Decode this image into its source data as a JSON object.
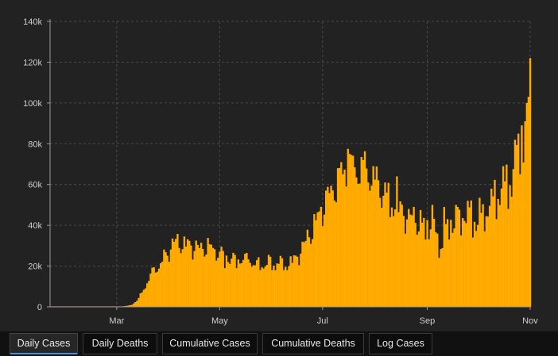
{
  "tabs": [
    {
      "label": "Daily Cases",
      "active": true
    },
    {
      "label": "Daily Deaths",
      "active": false
    },
    {
      "label": "Cumulative Cases",
      "active": false
    },
    {
      "label": "Cumulative Deaths",
      "active": false
    },
    {
      "label": "Log Cases",
      "active": false
    }
  ],
  "chart_data": {
    "type": "bar",
    "title": "",
    "xlabel": "",
    "ylabel": "",
    "bar_color": "#ffab00",
    "grid_color": "#4a4a4a",
    "grid": true,
    "ylim": [
      0,
      140000
    ],
    "y_ticks": [
      {
        "value": 0,
        "label": "0"
      },
      {
        "value": 20000,
        "label": "20k"
      },
      {
        "value": 40000,
        "label": "40k"
      },
      {
        "value": 60000,
        "label": "60k"
      },
      {
        "value": 80000,
        "label": "80k"
      },
      {
        "value": 100000,
        "label": "100k"
      },
      {
        "value": 120000,
        "label": "120k"
      },
      {
        "value": 140000,
        "label": "140k"
      }
    ],
    "x_ticks": [
      {
        "date": "2020-03-01",
        "label": "Mar"
      },
      {
        "date": "2020-05-01",
        "label": "May"
      },
      {
        "date": "2020-07-01",
        "label": "Jul"
      },
      {
        "date": "2020-09-01",
        "label": "Sep"
      },
      {
        "date": "2020-11-01",
        "label": "Nov"
      }
    ],
    "x_start": "2020-01-22",
    "x_end": "2020-11-01",
    "keypoints": [
      [
        "2020-01-22",
        0
      ],
      [
        "2020-02-28",
        10
      ],
      [
        "2020-03-03",
        100
      ],
      [
        "2020-03-07",
        500
      ],
      [
        "2020-03-10",
        1000
      ],
      [
        "2020-03-13",
        3000
      ],
      [
        "2020-03-16",
        7000
      ],
      [
        "2020-03-19",
        12000
      ],
      [
        "2020-03-22",
        17000
      ],
      [
        "2020-03-26",
        20000
      ],
      [
        "2020-03-29",
        24000
      ],
      [
        "2020-04-01",
        27000
      ],
      [
        "2020-04-04",
        31000
      ],
      [
        "2020-04-08",
        31000
      ],
      [
        "2020-04-12",
        30000
      ],
      [
        "2020-04-16",
        29000
      ],
      [
        "2020-04-20",
        28000
      ],
      [
        "2020-04-24",
        30000
      ],
      [
        "2020-04-28",
        27000
      ],
      [
        "2020-05-01",
        27000
      ],
      [
        "2020-05-05",
        25000
      ],
      [
        "2020-05-10",
        23000
      ],
      [
        "2020-05-15",
        24000
      ],
      [
        "2020-05-20",
        22000
      ],
      [
        "2020-05-26",
        21000
      ],
      [
        "2020-06-01",
        21000
      ],
      [
        "2020-06-06",
        22000
      ],
      [
        "2020-06-10",
        21000
      ],
      [
        "2020-06-15",
        23000
      ],
      [
        "2020-06-20",
        30000
      ],
      [
        "2020-06-25",
        38000
      ],
      [
        "2020-06-28",
        43000
      ],
      [
        "2020-07-02",
        50000
      ],
      [
        "2020-07-07",
        57000
      ],
      [
        "2020-07-11",
        63000
      ],
      [
        "2020-07-16",
        68000
      ],
      [
        "2020-07-21",
        66000
      ],
      [
        "2020-07-25",
        67000
      ],
      [
        "2020-07-30",
        63000
      ],
      [
        "2020-08-04",
        57000
      ],
      [
        "2020-08-08",
        55000
      ],
      [
        "2020-08-12",
        52000
      ],
      [
        "2020-08-16",
        46000
      ],
      [
        "2020-08-21",
        44000
      ],
      [
        "2020-08-26",
        42000
      ],
      [
        "2020-08-31",
        40000
      ],
      [
        "2020-09-04",
        42000
      ],
      [
        "2020-09-08",
        30000
      ],
      [
        "2020-09-12",
        38000
      ],
      [
        "2020-09-16",
        42000
      ],
      [
        "2020-09-20",
        44000
      ],
      [
        "2020-09-25",
        47000
      ],
      [
        "2020-09-30",
        42000
      ],
      [
        "2020-10-04",
        44000
      ],
      [
        "2020-10-08",
        52000
      ],
      [
        "2020-10-12",
        55000
      ],
      [
        "2020-10-16",
        62000
      ],
      [
        "2020-10-20",
        62000
      ],
      [
        "2020-10-24",
        78000
      ],
      [
        "2020-10-28",
        85000
      ],
      [
        "2020-10-30",
        95000
      ],
      [
        "2020-11-01",
        110000
      ]
    ],
    "spikes": [
      [
        "2020-04-03",
        33500
      ],
      [
        "2020-04-10",
        34500
      ],
      [
        "2020-04-17",
        32500
      ],
      [
        "2020-04-24",
        33800
      ],
      [
        "2020-05-02",
        29500
      ],
      [
        "2020-05-09",
        26500
      ],
      [
        "2020-05-16",
        26000
      ],
      [
        "2020-05-30",
        25500
      ],
      [
        "2020-06-06",
        25000
      ],
      [
        "2020-06-12",
        24800
      ],
      [
        "2020-06-19",
        32000
      ],
      [
        "2020-06-26",
        45500
      ],
      [
        "2020-07-03",
        57000
      ],
      [
        "2020-07-10",
        68000
      ],
      [
        "2020-07-13",
        65000
      ],
      [
        "2020-07-16",
        77500
      ],
      [
        "2020-07-17",
        75000
      ],
      [
        "2020-07-24",
        73500
      ],
      [
        "2020-07-25",
        72000
      ],
      [
        "2020-07-31",
        69000
      ],
      [
        "2020-08-07",
        61000
      ],
      [
        "2020-08-14",
        64000
      ],
      [
        "2020-08-21",
        48000
      ],
      [
        "2020-08-28",
        47500
      ],
      [
        "2020-09-04",
        50000
      ],
      [
        "2020-09-11",
        49000
      ],
      [
        "2020-09-18",
        50000
      ],
      [
        "2020-09-25",
        52000
      ],
      [
        "2020-10-02",
        53500
      ],
      [
        "2020-10-09",
        58000
      ],
      [
        "2020-10-16",
        69000
      ],
      [
        "2020-10-23",
        82000
      ],
      [
        "2020-10-27",
        89000
      ],
      [
        "2020-10-29",
        91000
      ],
      [
        "2020-10-30",
        100000
      ],
      [
        "2020-10-31",
        103000
      ],
      [
        "2020-11-01",
        122000
      ]
    ],
    "dips": [
      [
        "2020-05-04",
        19000
      ],
      [
        "2020-05-11",
        19000
      ],
      [
        "2020-05-25",
        18000
      ],
      [
        "2020-06-01",
        18000
      ],
      [
        "2020-06-08",
        18000
      ],
      [
        "2020-08-10",
        44000
      ],
      [
        "2020-08-31",
        33000
      ],
      [
        "2020-09-08",
        24000
      ],
      [
        "2020-09-14",
        33000
      ],
      [
        "2020-09-21",
        35000
      ],
      [
        "2020-09-28",
        34000
      ],
      [
        "2020-10-05",
        37000
      ],
      [
        "2020-10-12",
        43000
      ],
      [
        "2020-10-19",
        48000
      ],
      [
        "2020-10-26",
        65000
      ]
    ]
  }
}
